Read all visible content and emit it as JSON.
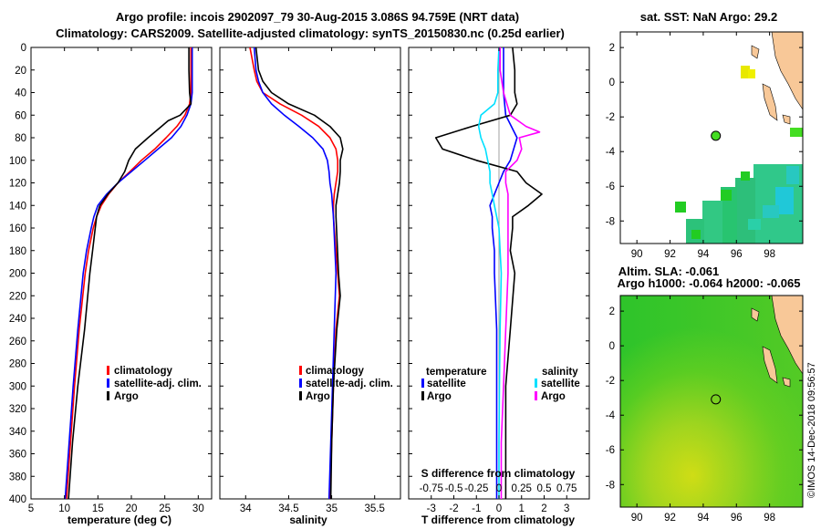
{
  "header": {
    "title_line1": "Argo profile: incois 2902097_79 30-Aug-2015 3.086S 94.759E (NRT data)",
    "title_line2": "Climatology: CARS2009. Satellite-adjusted climatology: synTS_20150830.nc (0.25d earlier)"
  },
  "credit": "©IMOS 14-Dec-2018 09:56:57",
  "colors": {
    "climatology": "#ff0000",
    "satellite": "#0000ff",
    "argo": "#000000",
    "sat_s": "#00e0ff",
    "argo_s": "#ff00ff"
  },
  "depth_ticks": [
    "0",
    "20",
    "40",
    "60",
    "80",
    "100",
    "120",
    "140",
    "160",
    "180",
    "200",
    "220",
    "240",
    "260",
    "280",
    "300",
    "320",
    "340",
    "360",
    "380",
    "400"
  ],
  "chart_data": [
    {
      "id": "temperature",
      "type": "line",
      "xlabel": "temperature (deg C)",
      "ylabel": "depth",
      "xlim": [
        5,
        32
      ],
      "ylim": [
        400,
        0
      ],
      "xticks": [
        5,
        10,
        15,
        20,
        25,
        30
      ],
      "xtick_labels": [
        "5",
        "10",
        "15",
        "20",
        "25",
        "30"
      ],
      "legend": [
        "climatology",
        "satellite-adj. clim.",
        "Argo"
      ],
      "series": [
        {
          "name": "climatology",
          "color": "#ff0000",
          "depth": [
            0,
            20,
            40,
            50,
            60,
            70,
            80,
            90,
            100,
            110,
            120,
            130,
            140,
            150,
            160,
            180,
            200,
            250,
            300,
            350,
            400
          ],
          "values": [
            28.9,
            28.9,
            28.9,
            28.7,
            28,
            26.8,
            25.2,
            23.5,
            21.5,
            19.8,
            18,
            16.6,
            15.5,
            14.8,
            14.3,
            13.6,
            13.1,
            12.2,
            11.5,
            10.9,
            10.3
          ]
        },
        {
          "name": "satellite-adj. clim.",
          "color": "#0000ff",
          "depth": [
            0,
            20,
            40,
            50,
            60,
            70,
            80,
            90,
            100,
            110,
            120,
            130,
            140,
            150,
            160,
            180,
            200,
            250,
            300,
            350,
            400
          ],
          "values": [
            29.1,
            29.1,
            29.1,
            28.9,
            28.3,
            27.4,
            26,
            24,
            22,
            20,
            18,
            16.3,
            15,
            14.4,
            14,
            13.3,
            12.8,
            12,
            11.3,
            10.7,
            10.1
          ]
        },
        {
          "name": "Argo",
          "color": "#000000",
          "depth": [
            0,
            20,
            40,
            50,
            60,
            65,
            70,
            80,
            90,
            100,
            110,
            120,
            130,
            140,
            150,
            160,
            180,
            200,
            250,
            300,
            350,
            400
          ],
          "values": [
            28.6,
            28.6,
            28.7,
            28.9,
            27.3,
            25.5,
            24.5,
            22.5,
            20.6,
            19.6,
            19,
            18,
            16.5,
            15.3,
            14.8,
            14.6,
            14.2,
            13.8,
            13,
            12,
            11.2,
            10.6
          ]
        }
      ]
    },
    {
      "id": "salinity",
      "type": "line",
      "xlabel": "salinity",
      "ylabel": "depth",
      "xlim": [
        33.7,
        35.8
      ],
      "ylim": [
        400,
        0
      ],
      "xticks": [
        34,
        34.5,
        35,
        35.5
      ],
      "xtick_labels": [
        "34",
        "34.5",
        "35",
        "35.5"
      ],
      "legend": [
        "climatology",
        "satellite-adj. clim.",
        "Argo"
      ],
      "series": [
        {
          "name": "climatology",
          "color": "#ff0000",
          "depth": [
            0,
            20,
            30,
            40,
            50,
            60,
            70,
            80,
            90,
            100,
            110,
            120,
            130,
            140,
            150,
            200,
            220,
            250,
            300,
            350,
            400
          ],
          "values": [
            34.05,
            34.1,
            34.13,
            34.2,
            34.4,
            34.65,
            34.85,
            34.98,
            35.05,
            35.07,
            35.07,
            35.05,
            35.03,
            35.02,
            35.02,
            35.07,
            35.09,
            35.05,
            35.02,
            35,
            34.98
          ]
        },
        {
          "name": "satellite-adj. clim.",
          "color": "#0000ff",
          "depth": [
            0,
            20,
            30,
            40,
            50,
            60,
            70,
            80,
            90,
            100,
            110,
            120,
            130,
            140,
            150,
            200,
            250,
            300,
            350,
            400
          ],
          "values": [
            34.1,
            34.12,
            34.15,
            34.2,
            34.3,
            34.45,
            34.62,
            34.78,
            34.9,
            34.95,
            34.97,
            34.98,
            35,
            35.01,
            35.02,
            35.05,
            35.03,
            35.01,
            34.99,
            34.97
          ]
        },
        {
          "name": "Argo",
          "color": "#000000",
          "depth": [
            0,
            20,
            30,
            40,
            50,
            60,
            70,
            80,
            90,
            100,
            110,
            120,
            130,
            140,
            150,
            200,
            220,
            250,
            300,
            350,
            400
          ],
          "values": [
            34.12,
            34.15,
            34.2,
            34.3,
            34.5,
            34.8,
            34.98,
            35.1,
            35.13,
            35.1,
            35.1,
            35.09,
            35.07,
            35.05,
            35.05,
            35.08,
            35.1,
            35.06,
            35.02,
            35,
            34.99
          ]
        }
      ]
    },
    {
      "id": "difference",
      "type": "line",
      "xlabel": "T difference from climatology",
      "xlabel2": "S difference from climatology",
      "ylabel": "depth",
      "xlim": [
        -4,
        4
      ],
      "ylim": [
        400,
        0
      ],
      "xticks": [
        -3,
        -2,
        -1,
        0,
        1,
        2,
        3
      ],
      "xtick_labels": [
        "-3",
        "-2",
        "-1",
        "0",
        "1",
        "2",
        "3"
      ],
      "xticks2": [
        -3,
        -2,
        -1,
        0,
        1,
        2,
        3
      ],
      "xtick_labels2": [
        "-0.75",
        "-0.5",
        "-0.25",
        "0",
        "0.25",
        "0.5",
        "0.75"
      ],
      "legend_temperature_title": "temperature",
      "legend_salinity_title": "salinity",
      "legend": [
        "satellite",
        "Argo",
        "satellite",
        "Argo"
      ],
      "series": [
        {
          "name": "T satellite",
          "color": "#0000ff",
          "depth": [
            0,
            20,
            40,
            60,
            80,
            100,
            110,
            120,
            130,
            140,
            150,
            160,
            180,
            200,
            250,
            300,
            350,
            400
          ],
          "values": [
            0.2,
            0.2,
            0.2,
            0.3,
            0.8,
            0.5,
            0.2,
            0,
            -0.2,
            -0.4,
            -0.3,
            -0.3,
            -0.2,
            -0.2,
            -0.1,
            -0.1,
            -0.1,
            -0.1
          ]
        },
        {
          "name": "T Argo",
          "color": "#000000",
          "depth": [
            0,
            20,
            40,
            50,
            60,
            70,
            80,
            90,
            100,
            110,
            120,
            130,
            140,
            150,
            160,
            180,
            200,
            250,
            300,
            350,
            400
          ],
          "values": [
            0.6,
            0.7,
            0.7,
            0.8,
            0.5,
            -1.2,
            -2.8,
            -2.5,
            -1,
            0.8,
            1.2,
            1.9,
            1.3,
            0.6,
            0.6,
            0.5,
            0.7,
            0.5,
            0.3,
            0.3,
            0.3
          ]
        },
        {
          "name": "S satellite",
          "color": "#00e0ff",
          "depth": [
            0,
            20,
            40,
            50,
            60,
            70,
            80,
            90,
            100,
            110,
            120,
            130,
            140,
            150,
            160,
            180,
            200,
            250,
            300,
            350,
            400
          ],
          "values": [
            0,
            -0.05,
            -0.05,
            -0.2,
            -0.8,
            -0.9,
            -0.8,
            -0.6,
            -0.5,
            -0.4,
            -0.4,
            -0.3,
            -0.2,
            -0.1,
            0,
            0.05,
            0.1,
            0.05,
            0.02,
            0,
            0
          ]
        },
        {
          "name": "S Argo",
          "color": "#ff00ff",
          "depth": [
            0,
            20,
            40,
            60,
            70,
            75,
            80,
            90,
            100,
            110,
            120,
            130,
            140,
            150,
            180,
            200,
            250,
            300,
            350,
            400
          ],
          "values": [
            0.05,
            0.05,
            0.2,
            0.5,
            1.2,
            1.8,
            0.9,
            1,
            0.8,
            0.3,
            0.3,
            0.4,
            0.4,
            0.4,
            0.4,
            0.4,
            0.3,
            0.2,
            0.1,
            0.1
          ]
        }
      ]
    }
  ],
  "maps": [
    {
      "id": "sst_map",
      "title": "sat. SST: NaN Argo: 29.2",
      "lonlim": [
        89,
        100
      ],
      "latlim": [
        -9.3,
        2.9
      ],
      "xticks": [
        90,
        92,
        94,
        96,
        98
      ],
      "xtick_labels": [
        "90",
        "92",
        "94",
        "96",
        "98"
      ],
      "yticks": [
        2,
        0,
        -2,
        -4,
        -6,
        -8
      ],
      "ytick_labels": [
        "2",
        "0",
        "-2",
        "-4",
        "-6",
        "-8"
      ],
      "argo_marker": {
        "lon": 94.759,
        "lat": -3.086,
        "fill": "#44dd22"
      }
    },
    {
      "id": "sla_map",
      "title_line1": "Altim. SLA: -0.061",
      "title_line2": "Argo h1000: -0.064 h2000: -0.065",
      "lonlim": [
        89,
        100
      ],
      "latlim": [
        -9.3,
        2.9
      ],
      "xticks": [
        90,
        92,
        94,
        96,
        98
      ],
      "xtick_labels": [
        "90",
        "92",
        "94",
        "96",
        "98"
      ],
      "yticks": [
        2,
        0,
        -2,
        -4,
        -6,
        -8
      ],
      "ytick_labels": [
        "2",
        "0",
        "-2",
        "-4",
        "-6",
        "-8"
      ],
      "argo_marker": {
        "lon": 94.759,
        "lat": -3.086,
        "fill": "none"
      }
    }
  ]
}
